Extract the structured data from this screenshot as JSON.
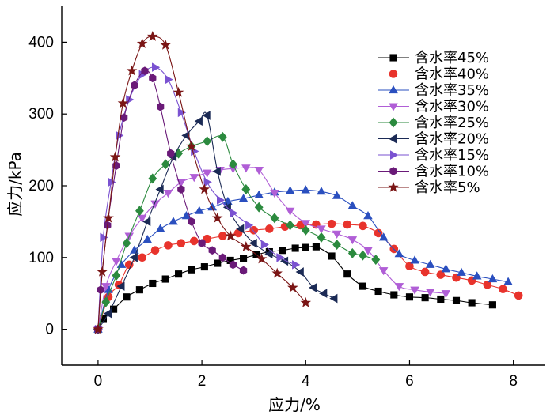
{
  "chart_data": {
    "type": "line",
    "xlabel": "应力/%",
    "ylabel": "应力/kPa",
    "xlim": [
      -0.7,
      8.6
    ],
    "ylim": [
      -50,
      450
    ],
    "xticks": [
      0,
      2,
      4,
      6,
      8
    ],
    "yticks": [
      0,
      100,
      200,
      300,
      400
    ],
    "grid": false,
    "legend_position": "right",
    "series": [
      {
        "name": "含水率45%",
        "marker": "square",
        "color": "#000000",
        "x": [
          0,
          0.1,
          0.3,
          0.55,
          0.8,
          1.05,
          1.3,
          1.55,
          1.8,
          2.05,
          2.3,
          2.55,
          2.8,
          3.05,
          3.3,
          3.55,
          3.8,
          4.0,
          4.2,
          4.5,
          4.8,
          5.1,
          5.4,
          5.7,
          6.0,
          6.3,
          6.6,
          6.9,
          7.2,
          7.6
        ],
        "y": [
          0,
          15,
          28,
          45,
          55,
          64,
          70,
          77,
          83,
          87,
          92,
          96,
          99,
          104,
          108,
          110,
          113,
          114,
          115,
          102,
          77,
          60,
          53,
          48,
          45,
          44,
          42,
          40,
          37,
          34
        ]
      },
      {
        "name": "含水率40%",
        "marker": "circle",
        "color": "#e8332c",
        "x": [
          0,
          0.2,
          0.4,
          0.6,
          0.85,
          1.1,
          1.35,
          1.6,
          1.85,
          2.1,
          2.4,
          2.7,
          3.0,
          3.3,
          3.6,
          3.9,
          4.2,
          4.5,
          4.8,
          5.1,
          5.4,
          5.7,
          6.0,
          6.3,
          6.6,
          6.9,
          7.2,
          7.5,
          7.8,
          8.1
        ],
        "y": [
          0,
          45,
          62,
          90,
          100,
          110,
          117,
          120,
          123,
          126,
          130,
          134,
          138,
          140,
          143,
          145,
          146,
          147,
          146,
          144,
          134,
          112,
          88,
          80,
          76,
          72,
          68,
          62,
          56,
          47
        ]
      },
      {
        "name": "含水率35%",
        "marker": "triangle-up",
        "color": "#2a4fbf",
        "x": [
          0,
          0.2,
          0.45,
          0.7,
          0.95,
          1.2,
          1.45,
          1.7,
          1.95,
          2.2,
          2.5,
          2.8,
          3.1,
          3.4,
          3.7,
          4.0,
          4.3,
          4.6,
          4.9,
          5.2,
          5.5,
          5.8,
          6.1,
          6.4,
          6.7,
          7.0,
          7.3,
          7.6,
          7.9
        ],
        "y": [
          0,
          55,
          90,
          110,
          125,
          140,
          150,
          158,
          165,
          170,
          178,
          182,
          187,
          191,
          193,
          194,
          192,
          186,
          172,
          158,
          128,
          105,
          96,
          90,
          84,
          79,
          74,
          70,
          66
        ]
      },
      {
        "name": "含水率30%",
        "marker": "triangle-down",
        "color": "#b05ed6",
        "x": [
          0,
          0.15,
          0.35,
          0.6,
          0.85,
          1.1,
          1.35,
          1.6,
          1.85,
          2.1,
          2.35,
          2.6,
          2.85,
          3.1,
          3.4,
          3.7,
          4.0,
          4.3,
          4.6,
          4.9,
          5.2,
          5.5,
          5.8,
          6.1,
          6.4,
          6.7
        ],
        "y": [
          0,
          60,
          95,
          130,
          155,
          175,
          190,
          205,
          212,
          218,
          222,
          224,
          225,
          222,
          190,
          165,
          148,
          140,
          133,
          125,
          110,
          82,
          60,
          55,
          52,
          50
        ]
      },
      {
        "name": "含水率25%",
        "marker": "diamond",
        "color": "#2b8a3e",
        "x": [
          0,
          0.15,
          0.35,
          0.55,
          0.8,
          1.05,
          1.3,
          1.55,
          1.8,
          2.1,
          2.4,
          2.6,
          2.85,
          3.1,
          3.4,
          3.7,
          4.0,
          4.3,
          4.6,
          4.9,
          5.1,
          5.35
        ],
        "y": [
          0,
          38,
          75,
          120,
          165,
          210,
          230,
          245,
          255,
          262,
          268,
          230,
          195,
          170,
          155,
          145,
          138,
          128,
          118,
          106,
          103,
          97
        ]
      },
      {
        "name": "含水率20%",
        "marker": "triangle-left",
        "color": "#1b2a55",
        "x": [
          0,
          0.2,
          0.45,
          0.7,
          0.95,
          1.2,
          1.45,
          1.7,
          1.95,
          2.1,
          2.3,
          2.5,
          2.75,
          3.0,
          3.3,
          3.6,
          3.9,
          4.15,
          4.35,
          4.55
        ],
        "y": [
          0,
          22,
          60,
          100,
          150,
          195,
          240,
          270,
          290,
          298,
          220,
          170,
          140,
          120,
          105,
          95,
          80,
          58,
          50,
          43
        ]
      },
      {
        "name": "含水率15%",
        "marker": "triangle-right",
        "color": "#7a52d1",
        "x": [
          0,
          0.1,
          0.25,
          0.4,
          0.6,
          0.85,
          1.1,
          1.35,
          1.6,
          1.85,
          2.1,
          2.35,
          2.6,
          2.9,
          3.2,
          3.5,
          3.8
        ],
        "y": [
          0,
          128,
          205,
          270,
          320,
          355,
          365,
          348,
          302,
          248,
          205,
          180,
          162,
          145,
          118,
          100,
          90
        ]
      },
      {
        "name": "含水率10%",
        "marker": "hexagon",
        "color": "#6a1a78",
        "x": [
          0,
          0.05,
          0.18,
          0.35,
          0.5,
          0.7,
          0.9,
          1.05,
          1.2,
          1.4,
          1.6,
          1.8,
          2.0,
          2.2,
          2.4,
          2.6,
          2.8
        ],
        "y": [
          0,
          55,
          145,
          228,
          295,
          340,
          360,
          350,
          310,
          245,
          195,
          150,
          120,
          110,
          100,
          90,
          82
        ]
      },
      {
        "name": "含水率5%",
        "marker": "star",
        "color": "#7a1515",
        "x": [
          0,
          0.08,
          0.2,
          0.33,
          0.48,
          0.65,
          0.85,
          1.05,
          1.3,
          1.55,
          1.8,
          2.05,
          2.3,
          2.55,
          2.85,
          3.15,
          3.45,
          3.75,
          4.0
        ],
        "y": [
          0,
          80,
          155,
          240,
          315,
          360,
          398,
          408,
          396,
          330,
          255,
          195,
          155,
          130,
          115,
          98,
          78,
          58,
          37
        ]
      }
    ]
  }
}
